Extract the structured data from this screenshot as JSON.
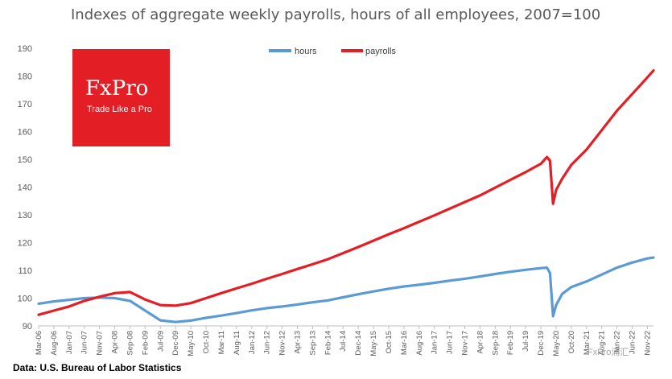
{
  "chart_data": {
    "type": "line",
    "title": "Indexes of aggregate weekly payrolls, hours of all employees, 2007=100",
    "source": "Data: U.S. Bureau of Labor Statistics",
    "ylim": [
      90,
      190
    ],
    "yticks": [
      90,
      100,
      110,
      120,
      130,
      140,
      150,
      160,
      170,
      180,
      190
    ],
    "grid": false,
    "legend": "top-center",
    "x_start": "2006-03",
    "x_end": "2023-01",
    "x_tick_labels": [
      "Mar-06",
      "Aug-06",
      "Jan-07",
      "Jun-07",
      "Nov-07",
      "Apr-08",
      "Sep-08",
      "Feb-09",
      "Jul-09",
      "Dec-09",
      "May-10",
      "Oct-10",
      "Mar-11",
      "Aug-11",
      "Jan-12",
      "Jun-12",
      "Nov-12",
      "Apr-13",
      "Sep-13",
      "Feb-14",
      "Jul-14",
      "Dec-14",
      "May-15",
      "Oct-15",
      "Mar-16",
      "Aug-16",
      "Jan-17",
      "Jun-17",
      "Nov-17",
      "Apr-18",
      "Sep-18",
      "Feb-19",
      "Jul-19",
      "Dec-19",
      "May-20",
      "Oct-20",
      "Mar-21",
      "Aug-21",
      "Jan-22",
      "Jun-22",
      "Nov-22"
    ],
    "series": [
      {
        "name": "hours",
        "color": "#5B9BD5",
        "points": [
          [
            "2006-03",
            98.0
          ],
          [
            "2006-08",
            98.8
          ],
          [
            "2007-01",
            99.4
          ],
          [
            "2007-06",
            100.0
          ],
          [
            "2007-11",
            100.2
          ],
          [
            "2008-04",
            100.0
          ],
          [
            "2008-09",
            99.0
          ],
          [
            "2009-02",
            95.5
          ],
          [
            "2009-07",
            92.0
          ],
          [
            "2009-12",
            91.4
          ],
          [
            "2010-05",
            91.9
          ],
          [
            "2010-10",
            92.9
          ],
          [
            "2011-03",
            93.7
          ],
          [
            "2011-08",
            94.6
          ],
          [
            "2012-01",
            95.6
          ],
          [
            "2012-06",
            96.4
          ],
          [
            "2012-11",
            97.0
          ],
          [
            "2013-04",
            97.7
          ],
          [
            "2013-09",
            98.5
          ],
          [
            "2014-02",
            99.2
          ],
          [
            "2014-07",
            100.3
          ],
          [
            "2014-12",
            101.4
          ],
          [
            "2015-05",
            102.4
          ],
          [
            "2015-10",
            103.4
          ],
          [
            "2016-03",
            104.2
          ],
          [
            "2016-08",
            104.8
          ],
          [
            "2017-01",
            105.5
          ],
          [
            "2017-06",
            106.3
          ],
          [
            "2017-11",
            107.0
          ],
          [
            "2018-04",
            107.8
          ],
          [
            "2018-09",
            108.7
          ],
          [
            "2019-02",
            109.5
          ],
          [
            "2019-07",
            110.2
          ],
          [
            "2019-12",
            110.8
          ],
          [
            "2020-02",
            111.0
          ],
          [
            "2020-03",
            109.0
          ],
          [
            "2020-04",
            93.5
          ],
          [
            "2020-05",
            97.5
          ],
          [
            "2020-07",
            101.5
          ],
          [
            "2020-10",
            104.0
          ],
          [
            "2021-03",
            106.0
          ],
          [
            "2021-08",
            108.5
          ],
          [
            "2022-01",
            111.0
          ],
          [
            "2022-06",
            112.8
          ],
          [
            "2022-11",
            114.3
          ],
          [
            "2023-01",
            114.6
          ]
        ]
      },
      {
        "name": "payrolls",
        "color": "#E31E24",
        "points": [
          [
            "2006-03",
            94.0
          ],
          [
            "2006-08",
            95.5
          ],
          [
            "2007-01",
            97.0
          ],
          [
            "2007-06",
            99.0
          ],
          [
            "2007-11",
            100.5
          ],
          [
            "2008-04",
            101.8
          ],
          [
            "2008-09",
            102.2
          ],
          [
            "2009-02",
            99.5
          ],
          [
            "2009-07",
            97.5
          ],
          [
            "2009-12",
            97.3
          ],
          [
            "2010-05",
            98.2
          ],
          [
            "2010-10",
            100.0
          ],
          [
            "2011-03",
            101.8
          ],
          [
            "2011-08",
            103.5
          ],
          [
            "2012-01",
            105.2
          ],
          [
            "2012-06",
            107.0
          ],
          [
            "2012-11",
            108.7
          ],
          [
            "2013-04",
            110.5
          ],
          [
            "2013-09",
            112.2
          ],
          [
            "2014-02",
            114.0
          ],
          [
            "2014-07",
            116.2
          ],
          [
            "2014-12",
            118.4
          ],
          [
            "2015-05",
            120.7
          ],
          [
            "2015-10",
            123.0
          ],
          [
            "2016-03",
            125.2
          ],
          [
            "2016-08",
            127.5
          ],
          [
            "2017-01",
            129.8
          ],
          [
            "2017-06",
            132.2
          ],
          [
            "2017-11",
            134.6
          ],
          [
            "2018-04",
            137.0
          ],
          [
            "2018-09",
            139.8
          ],
          [
            "2019-02",
            142.6
          ],
          [
            "2019-07",
            145.4
          ],
          [
            "2019-12",
            148.4
          ],
          [
            "2020-02",
            150.8
          ],
          [
            "2020-03",
            149.5
          ],
          [
            "2020-04",
            134.0
          ],
          [
            "2020-05",
            139.0
          ],
          [
            "2020-07",
            143.0
          ],
          [
            "2020-10",
            148.0
          ],
          [
            "2021-03",
            153.5
          ],
          [
            "2021-08",
            160.5
          ],
          [
            "2022-01",
            167.5
          ],
          [
            "2022-06",
            173.5
          ],
          [
            "2022-11",
            179.5
          ],
          [
            "2023-01",
            182.0
          ]
        ]
      }
    ]
  },
  "logo": {
    "brand": "FxPro",
    "tagline": "Trade Like a Pro",
    "color": "#E31E24"
  },
  "watermark": "FxPro浦汇"
}
